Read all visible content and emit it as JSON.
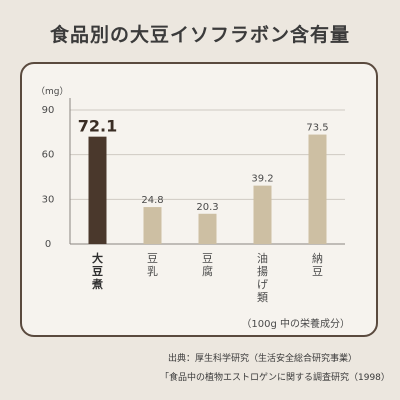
{
  "title": "食品別の大豆イソフラボン含有量",
  "chart_data": {
    "type": "bar",
    "unit_label": "（mg）",
    "yticks": [
      0,
      30,
      60,
      90
    ],
    "ylim": [
      0,
      90
    ],
    "grid": true,
    "categories": [
      {
        "label": "大豆煮",
        "lines": [
          "大",
          "豆",
          "煮"
        ],
        "highlight": true
      },
      {
        "label": "豆乳",
        "lines": [
          "豆",
          "乳"
        ],
        "highlight": false
      },
      {
        "label": "豆腐",
        "lines": [
          "豆",
          "腐"
        ],
        "highlight": false
      },
      {
        "label": "油揚げ類",
        "lines": [
          "油",
          "揚",
          "げ",
          "類"
        ],
        "highlight": false
      },
      {
        "label": "納豆",
        "lines": [
          "納",
          "豆"
        ],
        "highlight": false
      }
    ],
    "values": [
      72.1,
      24.8,
      20.3,
      39.2,
      73.5
    ],
    "value_labels": [
      "72.1",
      "24.8",
      "20.3",
      "39.2",
      "73.5"
    ],
    "colors": {
      "highlight": "#4a382c",
      "normal": "#cdbfa3",
      "grid": "#cfcac2",
      "axis": "#8a8580"
    },
    "note": "（100g 中の栄養成分）"
  },
  "sources": [
    "出典：厚生科学研究（生活安全総合研究事業）",
    "「食品中の植物エストロゲンに関する調査研究（1998）"
  ]
}
